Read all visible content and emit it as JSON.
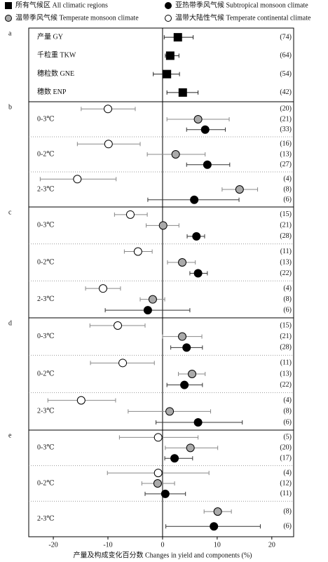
{
  "chart_data": {
    "type": "forest",
    "xlabel": "产量及构成变化百分数 Changes in yield and components (%)",
    "xlim": [
      -24.5,
      24
    ],
    "xticks": [
      -20,
      -10,
      0,
      10,
      20
    ],
    "series": [
      {
        "name": "所有气候区 All climatic regions",
        "marker": "square",
        "color": "#000000",
        "bar_color": "#222222"
      },
      {
        "name": "亚热带季风气候  Subtropical monsoon climate",
        "marker": "circle",
        "color": "#000000",
        "bar_color": "#333333"
      },
      {
        "name": "温带季风气候 Temperate monsoon climate",
        "marker": "circle",
        "color": "#aaaaaa",
        "bar_color": "#888888"
      },
      {
        "name": "温带大陆性气候 Temperate continental climate",
        "marker": "circle",
        "color": "#ffffff",
        "bar_color": "#888888"
      }
    ],
    "panels": [
      {
        "label": "a",
        "groups": [
          {
            "label": "产量 GY",
            "points": [
              {
                "series": 0,
                "value": 2.8,
                "ci": [
                  0.3,
                  5.6
                ],
                "n": "(74)"
              }
            ]
          },
          {
            "label": "千粒重 TKW",
            "points": [
              {
                "series": 0,
                "value": 1.4,
                "ci": [
                  0.5,
                  3
                ],
                "n": "(64)"
              }
            ]
          },
          {
            "label": "穗粒数 GNE",
            "points": [
              {
                "series": 0,
                "value": 0.8,
                "ci": [
                  -1.7,
                  3.1
                ],
                "n": "(54)"
              }
            ]
          },
          {
            "label": "穗数 ENP",
            "points": [
              {
                "series": 0,
                "value": 3.7,
                "ci": [
                  0.8,
                  6.5
                ],
                "n": "(42)"
              }
            ]
          }
        ]
      },
      {
        "label": "b",
        "groups": [
          {
            "label": "0-3℃",
            "points": [
              {
                "series": 3,
                "value": -10,
                "ci": [
                  -14.9,
                  -5
                ],
                "n": "(20)"
              },
              {
                "series": 2,
                "value": 6.5,
                "ci": [
                  0.8,
                  12.2
                ],
                "n": "(21)"
              },
              {
                "series": 1,
                "value": 7.8,
                "ci": [
                  4.4,
                  11.5
                ],
                "n": "(33)"
              }
            ]
          },
          {
            "label": "0-2℃",
            "points": [
              {
                "series": 3,
                "value": -9.9,
                "ci": [
                  -15.6,
                  -4.1
                ],
                "n": "(16)"
              },
              {
                "series": 2,
                "value": 2.4,
                "ci": [
                  -2.8,
                  7.8
                ],
                "n": "(13)"
              },
              {
                "series": 1,
                "value": 8.2,
                "ci": [
                  4.4,
                  12.3
                ],
                "n": "(27)"
              }
            ]
          },
          {
            "label": "2-3℃",
            "points": [
              {
                "series": 3,
                "value": -15.6,
                "ci": [
                  -22.4,
                  -8.5
                ],
                "n": "(4)"
              },
              {
                "series": 2,
                "value": 14.1,
                "ci": [
                  10.9,
                  17.4
                ],
                "n": "(8)"
              },
              {
                "series": 1,
                "value": 5.8,
                "ci": [
                  -2.7,
                  14
                ],
                "n": "(6)"
              }
            ]
          }
        ]
      },
      {
        "label": "c",
        "groups": [
          {
            "label": "0-3℃",
            "points": [
              {
                "series": 3,
                "value": -5.9,
                "ci": [
                  -8.8,
                  -2.8
                ],
                "n": "(15)"
              },
              {
                "series": 2,
                "value": 0.1,
                "ci": [
                  -3,
                  3
                ],
                "n": "(21)"
              },
              {
                "series": 1,
                "value": 6.2,
                "ci": [
                  4.5,
                  7.7
                ],
                "n": "(28)"
              }
            ]
          },
          {
            "label": "0-2℃",
            "points": [
              {
                "series": 3,
                "value": -4.5,
                "ci": [
                  -7,
                  -1.9
                ],
                "n": "(11)"
              },
              {
                "series": 2,
                "value": 3.6,
                "ci": [
                  0.9,
                  6
                ],
                "n": "(13)"
              },
              {
                "series": 1,
                "value": 6.5,
                "ci": [
                  5,
                  8.2
                ],
                "n": "(22)"
              }
            ]
          },
          {
            "label": "2-3℃",
            "points": [
              {
                "series": 3,
                "value": -10.9,
                "ci": [
                  -14.1,
                  -7.7
                ],
                "n": "(4)"
              },
              {
                "series": 2,
                "value": -1.8,
                "ci": [
                  -4.1,
                  0.4
                ],
                "n": "(8)"
              },
              {
                "series": 1,
                "value": -2.7,
                "ci": [
                  -10.5,
                  5
                ],
                "n": "(6)"
              }
            ]
          }
        ]
      },
      {
        "label": "d",
        "groups": [
          {
            "label": "0-3℃",
            "points": [
              {
                "series": 3,
                "value": -8.2,
                "ci": [
                  -13.3,
                  -3.2
                ],
                "n": "(15)"
              },
              {
                "series": 2,
                "value": 3.6,
                "ci": [
                  0,
                  7.2
                ],
                "n": "(21)"
              },
              {
                "series": 1,
                "value": 4.4,
                "ci": [
                  1.5,
                  7.3
                ],
                "n": "(28)"
              }
            ]
          },
          {
            "label": "0-2℃",
            "points": [
              {
                "series": 3,
                "value": -7.3,
                "ci": [
                  -13.2,
                  -1.5
                ],
                "n": "(11)"
              },
              {
                "series": 2,
                "value": 5.4,
                "ci": [
                  2.9,
                  7.8
                ],
                "n": "(13)"
              },
              {
                "series": 1,
                "value": 4,
                "ci": [
                  0.8,
                  7.3
                ],
                "n": "(22)"
              }
            ]
          },
          {
            "label": "2-3℃",
            "points": [
              {
                "series": 3,
                "value": -14.9,
                "ci": [
                  -21,
                  -8.6
                ],
                "n": "(4)"
              },
              {
                "series": 2,
                "value": 1.3,
                "ci": [
                  -6.3,
                  8.8
                ],
                "n": "(8)"
              },
              {
                "series": 1,
                "value": 6.5,
                "ci": [
                  -1.2,
                  14.6
                ],
                "n": "(6)"
              }
            ]
          }
        ]
      },
      {
        "label": "e",
        "groups": [
          {
            "label": "0-3℃",
            "points": [
              {
                "series": 3,
                "value": -0.8,
                "ci": [
                  -7.9,
                  6.5
                ],
                "n": "(5)"
              },
              {
                "series": 2,
                "value": 5.1,
                "ci": [
                  0.5,
                  10.1
                ],
                "n": "(20)"
              },
              {
                "series": 1,
                "value": 2.2,
                "ci": [
                  0.4,
                  5.5
                ],
                "n": "(17)"
              }
            ]
          },
          {
            "label": "0-2℃",
            "points": [
              {
                "series": 3,
                "value": -0.8,
                "ci": [
                  -10.1,
                  8.5
                ],
                "n": "(4)"
              },
              {
                "series": 2,
                "value": -0.9,
                "ci": [
                  -3.8,
                  2.2
                ],
                "n": "(12)"
              },
              {
                "series": 1,
                "value": 0.5,
                "ci": [
                  -3.2,
                  4.2
                ],
                "n": "(11)"
              }
            ]
          },
          {
            "label": "2-3℃",
            "points": [
              {
                "series": 2,
                "value": 10.1,
                "ci": [
                  7.6,
                  12.6
                ],
                "n": "(8)"
              },
              {
                "series": 1,
                "value": 9.4,
                "ci": [
                  0.6,
                  17.9
                ],
                "n": "(6)"
              }
            ]
          }
        ]
      }
    ]
  }
}
